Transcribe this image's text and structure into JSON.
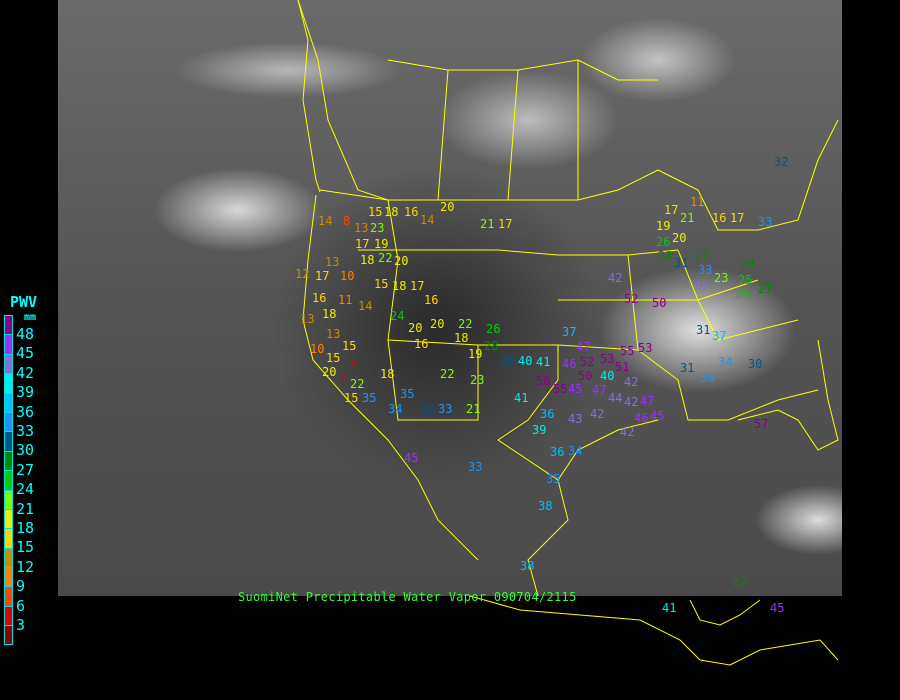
{
  "caption": "SuomiNet Precipitable Water Vapor 090704/2115",
  "legend": {
    "title": "PWV",
    "unit": "mm",
    "ticks": [
      "48",
      "45",
      "42",
      "39",
      "36",
      "33",
      "30",
      "27",
      "24",
      "21",
      "18",
      "15",
      "12",
      "9",
      "6",
      "3"
    ],
    "colors": [
      "#8b008b",
      "#9b30ff",
      "#8470d8",
      "#00eeee",
      "#00bfff",
      "#1e90ff",
      "#00578a",
      "#008b00",
      "#00cd00",
      "#7cfc00",
      "#eeee00",
      "#ffd700",
      "#cd8b00",
      "#ff8000",
      "#ff4500",
      "#e00000",
      "#8b0000"
    ]
  },
  "boundary_color": "#ffff00",
  "stations": [
    "14",
    "8",
    "13",
    "15",
    "18",
    "16",
    "14",
    "20",
    "21",
    "17",
    "17",
    "18",
    "19",
    "23",
    "22",
    "20",
    "13",
    "10",
    "12",
    "17",
    "16",
    "11",
    "14",
    "15",
    "18",
    "17",
    "16",
    "13",
    "15",
    "18",
    "13",
    "10",
    "15",
    "20",
    "5",
    "3",
    "22",
    "15",
    "35",
    "34",
    "18",
    "32",
    "21",
    "35",
    "33",
    "24",
    "20",
    "20",
    "22",
    "16",
    "22",
    "18",
    "19",
    "23",
    "28",
    "26",
    "30",
    "40",
    "41",
    "37",
    "47",
    "52",
    "46",
    "50",
    "50",
    "55",
    "53",
    "55",
    "51",
    "53",
    "47",
    "40",
    "42",
    "45",
    "36",
    "41",
    "39",
    "36",
    "43",
    "42",
    "44",
    "42",
    "47",
    "46",
    "45",
    "42",
    "34",
    "35",
    "38",
    "33",
    "42",
    "52",
    "50",
    "43",
    "33",
    "31",
    "27",
    "28",
    "26",
    "20",
    "19",
    "21",
    "17",
    "11",
    "16",
    "17",
    "23",
    "33",
    "29",
    "25",
    "25",
    "27",
    "31",
    "37",
    "32",
    "31",
    "35",
    "34",
    "30",
    "45",
    "57",
    "38",
    "27",
    "41",
    "45"
  ]
}
